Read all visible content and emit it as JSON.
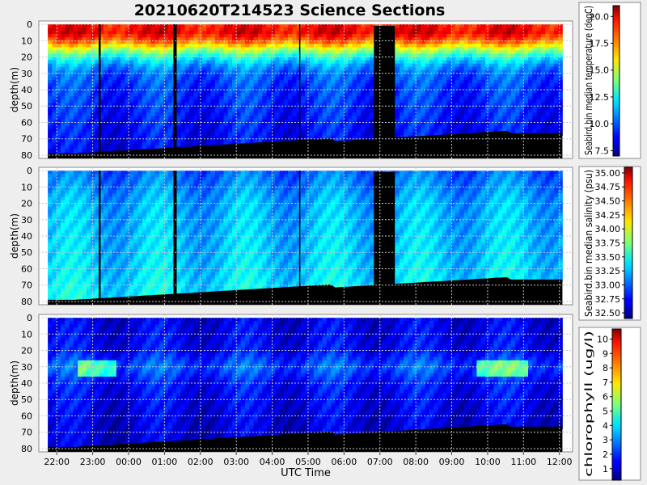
{
  "title": "20210620T214523 Science Sections",
  "xlabel": "UTC Time",
  "x_ticks": [
    "22:00",
    "23:00",
    "00:00",
    "01:00",
    "02:00",
    "03:00",
    "04:00",
    "05:00",
    "06:00",
    "07:00",
    "08:00",
    "09:00",
    "10:00",
    "11:00",
    "12:00"
  ],
  "colors": {
    "background": "#eeeeee",
    "gaps": "#000000",
    "grid": "#c8c8c8"
  },
  "chart_data": [
    {
      "type": "heatmap",
      "name": "temperature",
      "ylabel": "depth(m)",
      "colorbar_label": "Seabird.bin median temperature (degC)",
      "colormap": "jet",
      "y_ticks": [
        "0",
        "10",
        "20",
        "30",
        "40",
        "50",
        "60",
        "70",
        "80"
      ],
      "ylim": [
        82,
        -2
      ],
      "x_range": [
        "21:45",
        "12:05"
      ],
      "colorbar_ticks": [
        "7.5",
        "10.0",
        "12.5",
        "15.0",
        "17.5",
        "20.0"
      ],
      "clim": [
        7.0,
        21.0
      ],
      "profile_depth_m": [
        0,
        5,
        10,
        15,
        20,
        25,
        30,
        40,
        60,
        80
      ],
      "profile_value": [
        19,
        19.5,
        18,
        15,
        12.5,
        11,
        10,
        9.5,
        9,
        8.5
      ]
    },
    {
      "type": "heatmap",
      "name": "salinity",
      "ylabel": "depth(m)",
      "colorbar_label": "Seabird.bin median salinity (psu)",
      "colormap": "jet",
      "y_ticks": [
        "0",
        "10",
        "20",
        "30",
        "40",
        "50",
        "60",
        "70",
        "80"
      ],
      "ylim": [
        82,
        -2
      ],
      "x_range": [
        "21:45",
        "12:05"
      ],
      "colorbar_ticks": [
        "32.50",
        "32.75",
        "33.00",
        "33.25",
        "33.50",
        "33.75",
        "34.00",
        "34.25",
        "34.50",
        "34.75",
        "35.00"
      ],
      "clim": [
        32.4,
        35.1
      ],
      "profile_depth_m": [
        0,
        10,
        20,
        40,
        60,
        80
      ],
      "profile_value": [
        33.0,
        33.1,
        33.2,
        33.25,
        33.3,
        33.4
      ]
    },
    {
      "type": "heatmap",
      "name": "chlorophyll",
      "ylabel": "depth(m)",
      "colorbar_label": "chlorophyll (ug/l)",
      "colormap": "jet",
      "y_ticks": [
        "0",
        "10",
        "20",
        "30",
        "40",
        "50",
        "60",
        "70",
        "80"
      ],
      "ylim": [
        82,
        -2
      ],
      "x_range": [
        "21:45",
        "12:05"
      ],
      "colorbar_ticks": [
        "1",
        "2",
        "3",
        "4",
        "5",
        "6",
        "7",
        "8",
        "9",
        "10"
      ],
      "clim": [
        0.2,
        10.7
      ],
      "profile_depth_m": [
        0,
        20,
        30,
        40,
        60,
        80
      ],
      "profile_value": [
        1.2,
        1.5,
        2.5,
        1.6,
        1.2,
        1.0
      ]
    }
  ]
}
